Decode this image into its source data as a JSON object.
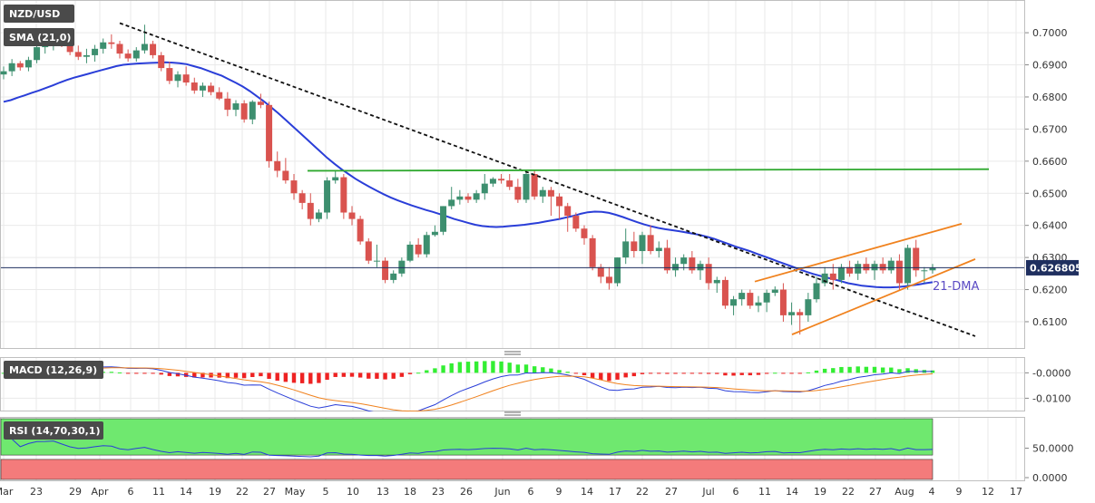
{
  "chart_data": {
    "type": "candlestick",
    "symbol": "NZD/USD",
    "indicator_label": "SMA (21,0)",
    "annotation": "21-DMA",
    "current_price": "0.626805",
    "y_ticks": [
      "0.7000",
      "0.6900",
      "0.6800",
      "0.6700",
      "0.6600",
      "0.6500",
      "0.6400",
      "0.6300",
      "0.6200",
      "0.6100"
    ],
    "ylim": [
      0.6035,
      0.7085
    ],
    "x_ticks": [
      "Mar",
      "23",
      "29",
      "Apr",
      "6",
      "11",
      "14",
      "19",
      "22",
      "27",
      "May",
      "5",
      "10",
      "13",
      "18",
      "23",
      "26",
      "Jun",
      "6",
      "9",
      "14",
      "17",
      "22",
      "27",
      "Jul",
      "6",
      "11",
      "14",
      "19",
      "22",
      "27",
      "Aug",
      "4",
      "9",
      "12",
      "17"
    ],
    "candles": [
      [
        0.687,
        0.6895,
        0.6855,
        0.688
      ],
      [
        0.688,
        0.6918,
        0.6865,
        0.6905
      ],
      [
        0.6905,
        0.6912,
        0.6882,
        0.6892
      ],
      [
        0.6892,
        0.6925,
        0.688,
        0.6915
      ],
      [
        0.6915,
        0.6962,
        0.6905,
        0.6955
      ],
      [
        0.6955,
        0.6975,
        0.6935,
        0.696
      ],
      [
        0.696,
        0.699,
        0.6945,
        0.698
      ],
      [
        0.698,
        0.6995,
        0.6955,
        0.6962
      ],
      [
        0.6962,
        0.6985,
        0.693,
        0.694
      ],
      [
        0.694,
        0.696,
        0.6915,
        0.6925
      ],
      [
        0.6925,
        0.695,
        0.6905,
        0.693
      ],
      [
        0.693,
        0.6962,
        0.691,
        0.695
      ],
      [
        0.695,
        0.6982,
        0.6935,
        0.697
      ],
      [
        0.697,
        0.6995,
        0.695,
        0.6965
      ],
      [
        0.6965,
        0.6975,
        0.692,
        0.6935
      ],
      [
        0.6935,
        0.6948,
        0.691,
        0.692
      ],
      [
        0.692,
        0.6955,
        0.691,
        0.6945
      ],
      [
        0.6945,
        0.7025,
        0.6935,
        0.6965
      ],
      [
        0.6965,
        0.6975,
        0.692,
        0.693
      ],
      [
        0.693,
        0.694,
        0.688,
        0.689
      ],
      [
        0.689,
        0.691,
        0.684,
        0.685
      ],
      [
        0.685,
        0.688,
        0.683,
        0.687
      ],
      [
        0.687,
        0.6895,
        0.6835,
        0.6845
      ],
      [
        0.6845,
        0.686,
        0.681,
        0.682
      ],
      [
        0.682,
        0.6845,
        0.68,
        0.6835
      ],
      [
        0.6835,
        0.6845,
        0.6805,
        0.6815
      ],
      [
        0.6815,
        0.683,
        0.679,
        0.6795
      ],
      [
        0.6795,
        0.6815,
        0.674,
        0.676
      ],
      [
        0.676,
        0.679,
        0.674,
        0.678
      ],
      [
        0.678,
        0.679,
        0.672,
        0.673
      ],
      [
        0.673,
        0.679,
        0.6715,
        0.6785
      ],
      [
        0.6785,
        0.681,
        0.6765,
        0.6775
      ],
      [
        0.6775,
        0.6785,
        0.658,
        0.66
      ],
      [
        0.66,
        0.663,
        0.655,
        0.657
      ],
      [
        0.657,
        0.661,
        0.653,
        0.654
      ],
      [
        0.654,
        0.656,
        0.648,
        0.65
      ],
      [
        0.65,
        0.651,
        0.645,
        0.647
      ],
      [
        0.647,
        0.65,
        0.64,
        0.642
      ],
      [
        0.642,
        0.645,
        0.641,
        0.644
      ],
      [
        0.644,
        0.655,
        0.642,
        0.654
      ],
      [
        0.654,
        0.657,
        0.653,
        0.655
      ],
      [
        0.655,
        0.656,
        0.642,
        0.644
      ],
      [
        0.644,
        0.646,
        0.64,
        0.642
      ],
      [
        0.642,
        0.643,
        0.634,
        0.635
      ],
      [
        0.635,
        0.636,
        0.628,
        0.629
      ],
      [
        0.629,
        0.634,
        0.627,
        0.629
      ],
      [
        0.629,
        0.63,
        0.622,
        0.623
      ],
      [
        0.623,
        0.626,
        0.622,
        0.625
      ],
      [
        0.625,
        0.63,
        0.624,
        0.629
      ],
      [
        0.629,
        0.635,
        0.6285,
        0.634
      ],
      [
        0.634,
        0.636,
        0.63,
        0.631
      ],
      [
        0.631,
        0.638,
        0.63,
        0.637
      ],
      [
        0.637,
        0.64,
        0.6365,
        0.638
      ],
      [
        0.638,
        0.646,
        0.637,
        0.646
      ],
      [
        0.646,
        0.652,
        0.645,
        0.648
      ],
      [
        0.648,
        0.651,
        0.6465,
        0.649
      ],
      [
        0.649,
        0.65,
        0.647,
        0.648
      ],
      [
        0.648,
        0.651,
        0.647,
        0.65
      ],
      [
        0.65,
        0.656,
        0.648,
        0.653
      ],
      [
        0.653,
        0.655,
        0.652,
        0.6545
      ],
      [
        0.6545,
        0.656,
        0.653,
        0.654
      ],
      [
        0.654,
        0.656,
        0.651,
        0.652
      ],
      [
        0.652,
        0.6545,
        0.647,
        0.648
      ],
      [
        0.648,
        0.657,
        0.647,
        0.656
      ],
      [
        0.656,
        0.657,
        0.648,
        0.649
      ],
      [
        0.649,
        0.652,
        0.647,
        0.651
      ],
      [
        0.651,
        0.652,
        0.643,
        0.649
      ],
      [
        0.649,
        0.65,
        0.642,
        0.646
      ],
      [
        0.646,
        0.647,
        0.638,
        0.643
      ],
      [
        0.643,
        0.644,
        0.638,
        0.639
      ],
      [
        0.639,
        0.64,
        0.634,
        0.636
      ],
      [
        0.636,
        0.637,
        0.626,
        0.627
      ],
      [
        0.627,
        0.628,
        0.622,
        0.624
      ],
      [
        0.624,
        0.627,
        0.62,
        0.622
      ],
      [
        0.622,
        0.63,
        0.621,
        0.63
      ],
      [
        0.63,
        0.639,
        0.628,
        0.635
      ],
      [
        0.635,
        0.638,
        0.63,
        0.632
      ],
      [
        0.632,
        0.638,
        0.628,
        0.637
      ],
      [
        0.637,
        0.64,
        0.631,
        0.632
      ],
      [
        0.632,
        0.635,
        0.63,
        0.633
      ],
      [
        0.633,
        0.6355,
        0.625,
        0.626
      ],
      [
        0.626,
        0.63,
        0.624,
        0.628
      ],
      [
        0.628,
        0.631,
        0.626,
        0.63
      ],
      [
        0.63,
        0.632,
        0.625,
        0.626
      ],
      [
        0.626,
        0.629,
        0.623,
        0.628
      ],
      [
        0.628,
        0.63,
        0.62,
        0.622
      ],
      [
        0.622,
        0.624,
        0.619,
        0.623
      ],
      [
        0.623,
        0.624,
        0.614,
        0.615
      ],
      [
        0.615,
        0.618,
        0.612,
        0.617
      ],
      [
        0.617,
        0.62,
        0.615,
        0.619
      ],
      [
        0.619,
        0.62,
        0.614,
        0.615
      ],
      [
        0.615,
        0.618,
        0.613,
        0.616
      ],
      [
        0.616,
        0.62,
        0.613,
        0.619
      ],
      [
        0.619,
        0.621,
        0.618,
        0.62
      ],
      [
        0.62,
        0.622,
        0.61,
        0.612
      ],
      [
        0.612,
        0.616,
        0.609,
        0.613
      ],
      [
        0.613,
        0.614,
        0.606,
        0.612
      ],
      [
        0.612,
        0.619,
        0.61,
        0.617
      ],
      [
        0.617,
        0.624,
        0.616,
        0.622
      ],
      [
        0.622,
        0.627,
        0.621,
        0.625
      ],
      [
        0.625,
        0.628,
        0.62,
        0.623
      ],
      [
        0.623,
        0.628,
        0.622,
        0.627
      ],
      [
        0.627,
        0.629,
        0.624,
        0.625
      ],
      [
        0.625,
        0.629,
        0.623,
        0.628
      ],
      [
        0.628,
        0.63,
        0.625,
        0.626
      ],
      [
        0.626,
        0.629,
        0.623,
        0.628
      ],
      [
        0.628,
        0.63,
        0.625,
        0.626
      ],
      [
        0.626,
        0.63,
        0.625,
        0.629
      ],
      [
        0.629,
        0.631,
        0.62,
        0.622
      ],
      [
        0.622,
        0.634,
        0.62,
        0.633
      ],
      [
        0.633,
        0.6355,
        0.624,
        0.626
      ],
      [
        0.626,
        0.627,
        0.622,
        0.626
      ],
      [
        0.626,
        0.628,
        0.625,
        0.6268
      ]
    ],
    "sma21": [
      0.6785,
      0.679,
      0.6798,
      0.6805,
      0.6813,
      0.682,
      0.6828,
      0.6836,
      0.6845,
      0.6853,
      0.686,
      0.6866,
      0.6872,
      0.6878,
      0.6884,
      0.689,
      0.6896,
      0.69,
      0.6902,
      0.6904,
      0.6905,
      0.6906,
      0.6907,
      0.6908,
      0.6907,
      0.6905,
      0.6902,
      0.6896,
      0.689,
      0.6882,
      0.6874,
      0.6866,
      0.6855,
      0.6844,
      0.6832,
      0.6818,
      0.6802,
      0.6786,
      0.6768,
      0.675,
      0.673,
      0.671,
      0.669,
      0.667,
      0.665,
      0.663,
      0.661,
      0.6592,
      0.6575,
      0.656,
      0.6545,
      0.6532,
      0.652,
      0.6508,
      0.6497,
      0.6487,
      0.6478,
      0.647,
      0.6462,
      0.6455,
      0.6448,
      0.6442,
      0.6435,
      0.6428,
      0.642,
      0.6414,
      0.6408,
      0.6402,
      0.6398,
      0.6396,
      0.6395,
      0.6396,
      0.6398,
      0.64,
      0.6402,
      0.6405,
      0.6408,
      0.6412,
      0.6416,
      0.642,
      0.6425,
      0.643,
      0.6436,
      0.6441,
      0.6443,
      0.6442,
      0.6439,
      0.6433,
      0.6426,
      0.6418,
      0.641,
      0.6403,
      0.6397,
      0.6392,
      0.6388,
      0.6385,
      0.6382,
      0.6378,
      0.6374,
      0.637,
      0.6364,
      0.6358,
      0.635,
      0.6342,
      0.6334,
      0.6327,
      0.632,
      0.6312,
      0.6304,
      0.6296,
      0.6288,
      0.628,
      0.6272,
      0.6264,
      0.6256,
      0.6249,
      0.6243,
      0.6237,
      0.6232,
      0.6226,
      0.622,
      0.6216,
      0.6212,
      0.621,
      0.6208,
      0.6207,
      0.6207,
      0.6208,
      0.621,
      0.6213,
      0.6216,
      0.622,
      0.6223
    ],
    "trend_lines": [
      {
        "style": "dashed",
        "from": [
          "Apr 3",
          0.703
        ],
        "to": [
          "Aug 10",
          0.6055
        ]
      },
      {
        "style": "green",
        "from": [
          "May 3",
          0.657
        ],
        "to": [
          "Aug 12",
          0.6575
        ]
      },
      {
        "style": "orange",
        "from": [
          "Jul 14",
          0.606
        ],
        "to": [
          "Aug 10",
          0.6295
        ]
      },
      {
        "style": "orange",
        "from": [
          "Jul 8",
          0.6225
        ],
        "to": [
          "Aug 6",
          0.6405
        ]
      }
    ],
    "macd": {
      "label": "MACD (12,26,9)",
      "y_ticks": [
        "-0.0000",
        "-0.0100"
      ],
      "ylim": [
        -0.0145,
        0.0055
      ]
    },
    "rsi": {
      "label": "RSI (14,70,30,1)",
      "y_ticks": [
        "50.0000",
        "0.0000"
      ],
      "ylim": [
        0,
        100
      ]
    }
  }
}
